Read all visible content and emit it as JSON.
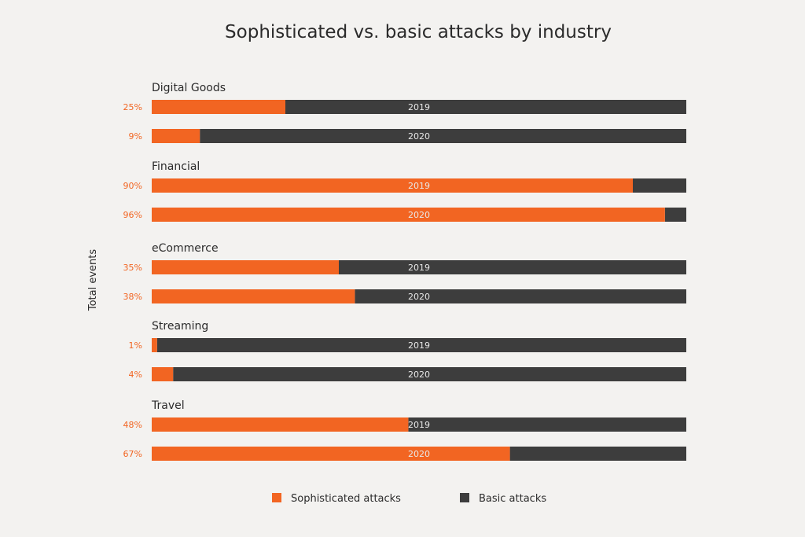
{
  "chart_data": {
    "type": "bar",
    "orientation": "horizontal",
    "stacked": true,
    "percent_stacked": true,
    "title": "Sophisticated vs. basic attacks by industry",
    "ylabel": "Total events",
    "xlim": [
      0,
      100
    ],
    "grid": false,
    "legend_position": "bottom",
    "colors": {
      "sophisticated": "#f26522",
      "basic": "#3d3d3d",
      "percent_label": "#f26522",
      "bar_label": "#e8e8e8",
      "text": "#2b2b2b",
      "background": "#f3f2f0"
    },
    "series": [
      {
        "name": "Sophisticated attacks",
        "key": "sophisticated"
      },
      {
        "name": "Basic attacks",
        "key": "basic"
      }
    ],
    "groups": [
      {
        "name": "Digital Goods",
        "bars": [
          {
            "year": "2019",
            "sophisticated": 25,
            "basic": 75,
            "label": "25%"
          },
          {
            "year": "2020",
            "sophisticated": 9,
            "basic": 91,
            "label": "9%"
          }
        ]
      },
      {
        "name": "Financial",
        "bars": [
          {
            "year": "2019",
            "sophisticated": 90,
            "basic": 10,
            "label": "90%"
          },
          {
            "year": "2020",
            "sophisticated": 96,
            "basic": 4,
            "label": "96%"
          }
        ]
      },
      {
        "name": "eCommerce",
        "bars": [
          {
            "year": "2019",
            "sophisticated": 35,
            "basic": 65,
            "label": "35%"
          },
          {
            "year": "2020",
            "sophisticated": 38,
            "basic": 62,
            "label": "38%"
          }
        ]
      },
      {
        "name": "Streaming",
        "bars": [
          {
            "year": "2019",
            "sophisticated": 1,
            "basic": 99,
            "label": "1%"
          },
          {
            "year": "2020",
            "sophisticated": 4,
            "basic": 96,
            "label": "4%"
          }
        ]
      },
      {
        "name": "Travel",
        "bars": [
          {
            "year": "2019",
            "sophisticated": 48,
            "basic": 52,
            "label": "48%"
          },
          {
            "year": "2020",
            "sophisticated": 67,
            "basic": 33,
            "label": "67%"
          }
        ]
      }
    ]
  }
}
